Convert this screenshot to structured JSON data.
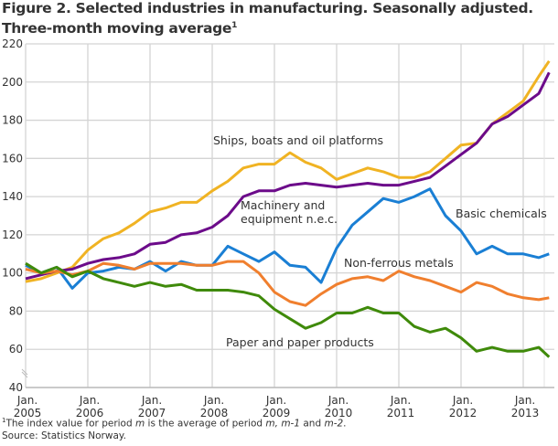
{
  "title_line1": "Figure 2. Selected industries in manufacturing. Seasonally adjusted.",
  "title_line2": "Three-month moving average",
  "title_sup": "1",
  "footnote": {
    "sup": "1",
    "text_parts": [
      "The index value for period ",
      "m",
      " is the average of period ",
      "m, m-1",
      " and ",
      "m-2",
      "."
    ]
  },
  "source": "Source: Statistics Norway.",
  "chart_data": {
    "type": "line",
    "xlabel": "",
    "ylabel": "",
    "ylim": [
      40,
      220
    ],
    "yticks": [
      40,
      60,
      80,
      100,
      120,
      140,
      160,
      180,
      200,
      220
    ],
    "xlim": [
      "2005-01",
      "2013-07"
    ],
    "xticks": [
      {
        "date": "2005-01",
        "l1": "Jan.",
        "l2": "2005"
      },
      {
        "date": "2006-01",
        "l1": "Jan.",
        "l2": "2006"
      },
      {
        "date": "2007-01",
        "l1": "Jan.",
        "l2": "2007"
      },
      {
        "date": "2008-01",
        "l1": "Jan.",
        "l2": "2008"
      },
      {
        "date": "2009-01",
        "l1": "Jan.",
        "l2": "2009"
      },
      {
        "date": "2010-01",
        "l1": "Jan.",
        "l2": "2010"
      },
      {
        "date": "2011-01",
        "l1": "Jan.",
        "l2": "2011"
      },
      {
        "date": "2012-01",
        "l1": "Jan.",
        "l2": "2012"
      },
      {
        "date": "2013-01",
        "l1": "Jan.",
        "l2": "2013"
      }
    ],
    "grid": true,
    "x": [
      "2005-01",
      "2005-04",
      "2005-07",
      "2005-10",
      "2006-01",
      "2006-04",
      "2006-07",
      "2006-10",
      "2007-01",
      "2007-04",
      "2007-07",
      "2007-10",
      "2008-01",
      "2008-04",
      "2008-07",
      "2008-10",
      "2009-01",
      "2009-04",
      "2009-07",
      "2009-10",
      "2010-01",
      "2010-04",
      "2010-07",
      "2010-10",
      "2011-01",
      "2011-04",
      "2011-07",
      "2011-10",
      "2012-01",
      "2012-04",
      "2012-07",
      "2012-10",
      "2013-01",
      "2013-04",
      "2013-06"
    ],
    "series": [
      {
        "name": "Ships, boats and oil platforms",
        "color": "#f0b323",
        "values": [
          95.5,
          97,
          100,
          103,
          112,
          118,
          121,
          126,
          132,
          134,
          137,
          137,
          143,
          148,
          155,
          157,
          157,
          163,
          158,
          155,
          149,
          152,
          155,
          153,
          150,
          150,
          153,
          160,
          167,
          168,
          178,
          184,
          190,
          203,
          211
        ]
      },
      {
        "name": "Machinery and equipment n.e.c.",
        "color": "#6c0b8a",
        "values": [
          97,
          99,
          101,
          102,
          105,
          107,
          108,
          110,
          115,
          116,
          120,
          121,
          124,
          130,
          140,
          143,
          143,
          146,
          147,
          146,
          145,
          146,
          147,
          146,
          146,
          148,
          150,
          156,
          162,
          168,
          178,
          182,
          188,
          194,
          205
        ]
      },
      {
        "name": "Basic chemicals",
        "color": "#1a7fd4",
        "values": [
          104,
          100,
          103,
          92,
          100,
          101,
          103,
          102,
          106,
          101,
          106,
          104,
          104,
          114,
          110,
          106,
          111,
          104,
          103,
          95,
          113,
          125,
          132,
          139,
          137,
          140,
          144,
          130,
          122,
          110,
          114,
          110,
          110,
          108,
          110
        ]
      },
      {
        "name": "Non-ferrous metals",
        "color": "#f07f2e",
        "values": [
          102,
          100,
          101,
          99,
          101,
          105,
          104,
          102,
          105,
          105,
          105,
          104,
          104,
          106,
          106,
          100,
          90,
          85,
          83,
          89,
          94,
          97,
          98,
          96,
          101,
          98,
          96,
          93,
          90,
          95,
          93,
          89,
          87,
          86,
          87
        ]
      },
      {
        "name": "Paper and paper products",
        "color": "#3f8a0a",
        "values": [
          105,
          100,
          103,
          98,
          101,
          97,
          95,
          93,
          95,
          93,
          94,
          91,
          91,
          91,
          90,
          88,
          81,
          76,
          71,
          74,
          79,
          79,
          82,
          79,
          79,
          72,
          69,
          71,
          66,
          59,
          61,
          59,
          59,
          61,
          56
        ]
      }
    ]
  }
}
